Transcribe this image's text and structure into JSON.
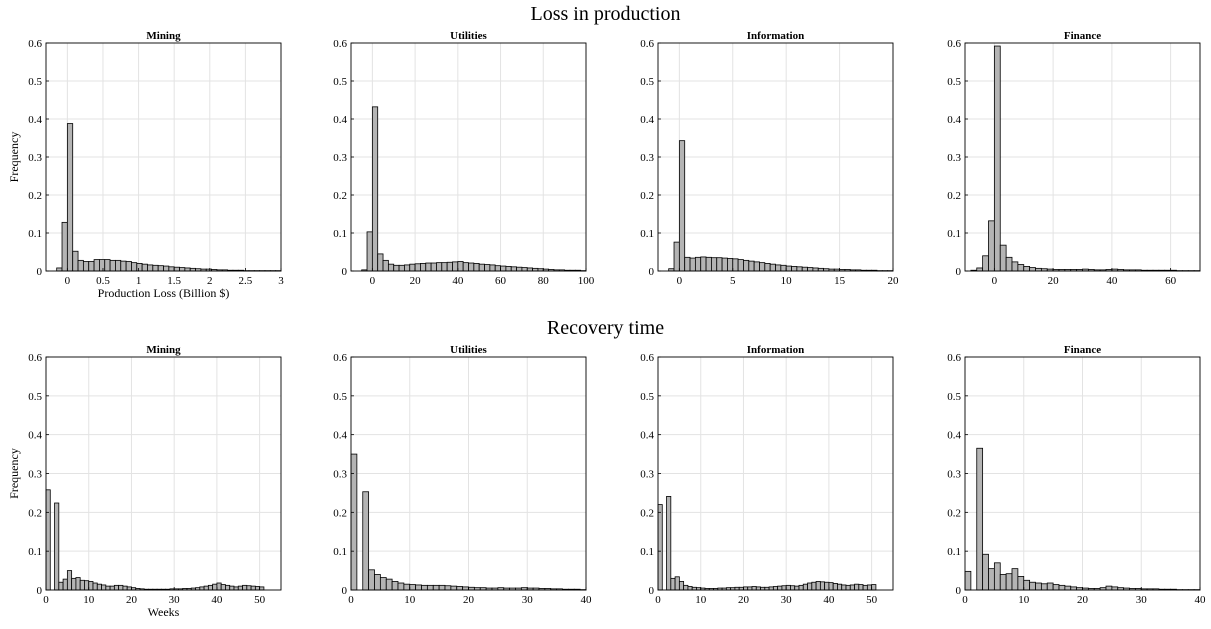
{
  "row_titles": [
    "Loss in production",
    "Recovery time"
  ],
  "colors": {
    "bar_fill": "#b4b4b4",
    "bar_stroke": "#000000",
    "grid": "#e3e3e3"
  },
  "chart_data": [
    {
      "type": "bar",
      "title": "Mining",
      "row": 0,
      "col": 0,
      "xlabel": "Production Loss (Billion $)",
      "ylabel": "Frequency",
      "xlim": [
        -0.3,
        3
      ],
      "ylim": [
        0,
        0.6
      ],
      "xticks": [
        0,
        0.5,
        1,
        1.5,
        2,
        2.5,
        3
      ],
      "xtick_labels": [
        "0",
        "0.5",
        "1",
        "1.5",
        "2",
        "2.5",
        "3"
      ],
      "yticks": [
        0,
        0.1,
        0.2,
        0.3,
        0.4,
        0.5,
        0.6
      ],
      "ytick_labels": [
        "0",
        "0.1",
        "0.2",
        "0.3",
        "0.4",
        "0.5",
        "0.6"
      ],
      "grid": true,
      "bin_width": 0.075,
      "x": [
        -0.1125,
        -0.0375,
        0.0375,
        0.1125,
        0.1875,
        0.2625,
        0.3375,
        0.4125,
        0.4875,
        0.5625,
        0.6375,
        0.7125,
        0.7875,
        0.8625,
        0.9375,
        1.0125,
        1.0875,
        1.1625,
        1.2375,
        1.3125,
        1.3875,
        1.4625,
        1.5375,
        1.6125,
        1.6875,
        1.7625,
        1.8375,
        1.9125,
        1.9875,
        2.0625,
        2.1375,
        2.2125,
        2.2875,
        2.3625,
        2.4375,
        2.5125,
        2.5875,
        2.6625,
        2.7375,
        2.8125,
        2.8875,
        2.9625
      ],
      "values": [
        0.008,
        0.128,
        0.388,
        0.052,
        0.028,
        0.025,
        0.025,
        0.03,
        0.03,
        0.03,
        0.028,
        0.028,
        0.026,
        0.025,
        0.022,
        0.02,
        0.018,
        0.016,
        0.015,
        0.014,
        0.013,
        0.011,
        0.01,
        0.009,
        0.008,
        0.007,
        0.006,
        0.005,
        0.005,
        0.004,
        0.003,
        0.003,
        0.002,
        0.002,
        0.002,
        0.001,
        0.001,
        0.001,
        0.001,
        0.001,
        0.001,
        0.001
      ]
    },
    {
      "type": "bar",
      "title": "Utilities",
      "row": 0,
      "col": 1,
      "xlabel": "",
      "ylabel": "",
      "xlim": [
        -10,
        100
      ],
      "ylim": [
        0,
        0.6
      ],
      "xticks": [
        0,
        20,
        40,
        60,
        80,
        100
      ],
      "xtick_labels": [
        "0",
        "20",
        "40",
        "60",
        "80",
        "100"
      ],
      "yticks": [
        0,
        0.1,
        0.2,
        0.3,
        0.4,
        0.5,
        0.6
      ],
      "ytick_labels": [
        "0",
        "0.1",
        "0.2",
        "0.3",
        "0.4",
        "0.5",
        "0.6"
      ],
      "grid": true,
      "bin_width": 2.5,
      "x": [
        -3.75,
        -1.25,
        1.25,
        3.75,
        6.25,
        8.75,
        11.25,
        13.75,
        16.25,
        18.75,
        21.25,
        23.75,
        26.25,
        28.75,
        31.25,
        33.75,
        36.25,
        38.75,
        41.25,
        43.75,
        46.25,
        48.75,
        51.25,
        53.75,
        56.25,
        58.75,
        61.25,
        63.75,
        66.25,
        68.75,
        71.25,
        73.75,
        76.25,
        78.75,
        81.25,
        83.75,
        86.25,
        88.75,
        91.25,
        93.75,
        96.25,
        98.75
      ],
      "values": [
        0.003,
        0.103,
        0.432,
        0.045,
        0.028,
        0.018,
        0.015,
        0.015,
        0.016,
        0.018,
        0.019,
        0.02,
        0.021,
        0.021,
        0.022,
        0.022,
        0.023,
        0.024,
        0.025,
        0.022,
        0.021,
        0.02,
        0.018,
        0.017,
        0.016,
        0.014,
        0.013,
        0.012,
        0.011,
        0.01,
        0.009,
        0.008,
        0.007,
        0.006,
        0.005,
        0.004,
        0.003,
        0.003,
        0.002,
        0.002,
        0.002,
        0.001
      ]
    },
    {
      "type": "bar",
      "title": "Information",
      "row": 0,
      "col": 2,
      "xlabel": "",
      "ylabel": "",
      "xlim": [
        -2,
        20
      ],
      "ylim": [
        0,
        0.6
      ],
      "xticks": [
        0,
        5,
        10,
        15,
        20
      ],
      "xtick_labels": [
        "0",
        "5",
        "10",
        "15",
        "20"
      ],
      "yticks": [
        0,
        0.1,
        0.2,
        0.3,
        0.4,
        0.5,
        0.6
      ],
      "ytick_labels": [
        "0",
        "0.1",
        "0.2",
        "0.3",
        "0.4",
        "0.5",
        "0.6"
      ],
      "grid": true,
      "bin_width": 0.5,
      "x": [
        -0.75,
        -0.25,
        0.25,
        0.75,
        1.25,
        1.75,
        2.25,
        2.75,
        3.25,
        3.75,
        4.25,
        4.75,
        5.25,
        5.75,
        6.25,
        6.75,
        7.25,
        7.75,
        8.25,
        8.75,
        9.25,
        9.75,
        10.25,
        10.75,
        11.25,
        11.75,
        12.25,
        12.75,
        13.25,
        13.75,
        14.25,
        14.75,
        15.25,
        15.75,
        16.25,
        16.75,
        17.25,
        17.75,
        18.25,
        18.75,
        19.25,
        19.75
      ],
      "values": [
        0.006,
        0.076,
        0.343,
        0.036,
        0.034,
        0.036,
        0.037,
        0.036,
        0.035,
        0.035,
        0.034,
        0.033,
        0.032,
        0.03,
        0.028,
        0.026,
        0.024,
        0.022,
        0.02,
        0.018,
        0.016,
        0.015,
        0.013,
        0.012,
        0.011,
        0.01,
        0.009,
        0.008,
        0.007,
        0.006,
        0.005,
        0.005,
        0.004,
        0.004,
        0.003,
        0.003,
        0.002,
        0.002,
        0.002,
        0.001,
        0.001,
        0.001
      ]
    },
    {
      "type": "bar",
      "title": "Finance",
      "row": 0,
      "col": 3,
      "xlabel": "",
      "ylabel": "",
      "xlim": [
        -10,
        70
      ],
      "ylim": [
        0,
        0.6
      ],
      "xticks": [
        0,
        20,
        40,
        60
      ],
      "xtick_labels": [
        "0",
        "20",
        "40",
        "60"
      ],
      "yticks": [
        0,
        0.1,
        0.2,
        0.3,
        0.4,
        0.5,
        0.6
      ],
      "ytick_labels": [
        "0",
        "0.1",
        "0.2",
        "0.3",
        "0.4",
        "0.5",
        "0.6"
      ],
      "grid": true,
      "bin_width": 2,
      "x": [
        -7,
        -5,
        -3,
        -1,
        1,
        3,
        5,
        7,
        9,
        11,
        13,
        15,
        17,
        19,
        21,
        23,
        25,
        27,
        29,
        31,
        33,
        35,
        37,
        39,
        41,
        43,
        45,
        47,
        49,
        51,
        53,
        55,
        57,
        59,
        61,
        63,
        65,
        67,
        69
      ],
      "values": [
        0.002,
        0.008,
        0.04,
        0.132,
        0.592,
        0.068,
        0.036,
        0.024,
        0.017,
        0.012,
        0.009,
        0.007,
        0.006,
        0.005,
        0.004,
        0.004,
        0.004,
        0.004,
        0.004,
        0.005,
        0.004,
        0.003,
        0.003,
        0.004,
        0.005,
        0.004,
        0.003,
        0.003,
        0.003,
        0.002,
        0.002,
        0.002,
        0.002,
        0.002,
        0.002,
        0.001,
        0.001,
        0.001,
        0.001
      ]
    },
    {
      "type": "bar",
      "title": "Mining",
      "row": 1,
      "col": 0,
      "xlabel": "Weeks",
      "ylabel": "Frequency",
      "xlim": [
        0,
        55
      ],
      "ylim": [
        0,
        0.6
      ],
      "xticks": [
        0,
        10,
        20,
        30,
        40,
        50
      ],
      "xtick_labels": [
        "0",
        "10",
        "20",
        "30",
        "40",
        "50"
      ],
      "yticks": [
        0,
        0.1,
        0.2,
        0.3,
        0.4,
        0.5,
        0.6
      ],
      "ytick_labels": [
        "0",
        "0.1",
        "0.2",
        "0.3",
        "0.4",
        "0.5",
        "0.6"
      ],
      "grid": true,
      "bin_width": 1,
      "x": [
        0.5,
        1.5,
        2.5,
        3.5,
        4.5,
        5.5,
        6.5,
        7.5,
        8.5,
        9.5,
        10.5,
        11.5,
        12.5,
        13.5,
        14.5,
        15.5,
        16.5,
        17.5,
        18.5,
        19.5,
        20.5,
        21.5,
        22.5,
        23.5,
        24.5,
        25.5,
        26.5,
        27.5,
        28.5,
        29.5,
        30.5,
        31.5,
        32.5,
        33.5,
        34.5,
        35.5,
        36.5,
        37.5,
        38.5,
        39.5,
        40.5,
        41.5,
        42.5,
        43.5,
        44.5,
        45.5,
        46.5,
        47.5,
        48.5,
        49.5,
        50.5
      ],
      "values": [
        0.258,
        0.0,
        0.224,
        0.02,
        0.028,
        0.05,
        0.03,
        0.032,
        0.025,
        0.024,
        0.022,
        0.018,
        0.015,
        0.013,
        0.01,
        0.01,
        0.012,
        0.012,
        0.01,
        0.008,
        0.006,
        0.004,
        0.003,
        0.002,
        0.002,
        0.002,
        0.002,
        0.002,
        0.002,
        0.003,
        0.003,
        0.003,
        0.004,
        0.004,
        0.005,
        0.006,
        0.008,
        0.01,
        0.012,
        0.015,
        0.018,
        0.014,
        0.012,
        0.01,
        0.008,
        0.01,
        0.012,
        0.011,
        0.01,
        0.009,
        0.008
      ]
    },
    {
      "type": "bar",
      "title": "Utilities",
      "row": 1,
      "col": 1,
      "xlabel": "",
      "ylabel": "",
      "xlim": [
        0,
        40
      ],
      "ylim": [
        0,
        0.6
      ],
      "xticks": [
        0,
        10,
        20,
        30,
        40
      ],
      "xtick_labels": [
        "0",
        "10",
        "20",
        "30",
        "40"
      ],
      "yticks": [
        0,
        0.1,
        0.2,
        0.3,
        0.4,
        0.5,
        0.6
      ],
      "ytick_labels": [
        "0",
        "0.1",
        "0.2",
        "0.3",
        "0.4",
        "0.5",
        "0.6"
      ],
      "grid": true,
      "bin_width": 1,
      "x": [
        0.5,
        1.5,
        2.5,
        3.5,
        4.5,
        5.5,
        6.5,
        7.5,
        8.5,
        9.5,
        10.5,
        11.5,
        12.5,
        13.5,
        14.5,
        15.5,
        16.5,
        17.5,
        18.5,
        19.5,
        20.5,
        21.5,
        22.5,
        23.5,
        24.5,
        25.5,
        26.5,
        27.5,
        28.5,
        29.5,
        30.5,
        31.5,
        32.5,
        33.5,
        34.5,
        35.5,
        36.5,
        37.5,
        38.5,
        39.5
      ],
      "values": [
        0.35,
        0.0,
        0.253,
        0.052,
        0.04,
        0.032,
        0.028,
        0.022,
        0.018,
        0.015,
        0.014,
        0.013,
        0.012,
        0.012,
        0.012,
        0.012,
        0.011,
        0.01,
        0.009,
        0.008,
        0.007,
        0.006,
        0.006,
        0.005,
        0.005,
        0.006,
        0.005,
        0.005,
        0.005,
        0.006,
        0.005,
        0.005,
        0.004,
        0.004,
        0.003,
        0.003,
        0.002,
        0.002,
        0.002,
        0.001
      ]
    },
    {
      "type": "bar",
      "title": "Information",
      "row": 1,
      "col": 2,
      "xlabel": "",
      "ylabel": "",
      "xlim": [
        0,
        55
      ],
      "ylim": [
        0,
        0.6
      ],
      "xticks": [
        0,
        10,
        20,
        30,
        40,
        50
      ],
      "xtick_labels": [
        "0",
        "10",
        "20",
        "30",
        "40",
        "50"
      ],
      "yticks": [
        0,
        0.1,
        0.2,
        0.3,
        0.4,
        0.5,
        0.6
      ],
      "ytick_labels": [
        "0",
        "0.1",
        "0.2",
        "0.3",
        "0.4",
        "0.5",
        "0.6"
      ],
      "grid": true,
      "bin_width": 1,
      "x": [
        0.5,
        1.5,
        2.5,
        3.5,
        4.5,
        5.5,
        6.5,
        7.5,
        8.5,
        9.5,
        10.5,
        11.5,
        12.5,
        13.5,
        14.5,
        15.5,
        16.5,
        17.5,
        18.5,
        19.5,
        20.5,
        21.5,
        22.5,
        23.5,
        24.5,
        25.5,
        26.5,
        27.5,
        28.5,
        29.5,
        30.5,
        31.5,
        32.5,
        33.5,
        34.5,
        35.5,
        36.5,
        37.5,
        38.5,
        39.5,
        40.5,
        41.5,
        42.5,
        43.5,
        44.5,
        45.5,
        46.5,
        47.5,
        48.5,
        49.5,
        50.5
      ],
      "values": [
        0.22,
        0.0,
        0.241,
        0.03,
        0.034,
        0.022,
        0.012,
        0.009,
        0.007,
        0.006,
        0.005,
        0.004,
        0.004,
        0.004,
        0.005,
        0.005,
        0.006,
        0.006,
        0.007,
        0.007,
        0.008,
        0.008,
        0.009,
        0.008,
        0.007,
        0.007,
        0.008,
        0.009,
        0.01,
        0.011,
        0.012,
        0.011,
        0.01,
        0.012,
        0.015,
        0.018,
        0.02,
        0.022,
        0.021,
        0.02,
        0.019,
        0.017,
        0.015,
        0.013,
        0.012,
        0.013,
        0.015,
        0.014,
        0.012,
        0.013,
        0.014
      ]
    },
    {
      "type": "bar",
      "title": "Finance",
      "row": 1,
      "col": 3,
      "xlabel": "",
      "ylabel": "",
      "xlim": [
        0,
        40
      ],
      "ylim": [
        0,
        0.6
      ],
      "xticks": [
        0,
        10,
        20,
        30,
        40
      ],
      "xtick_labels": [
        "0",
        "10",
        "20",
        "30",
        "40"
      ],
      "yticks": [
        0,
        0.1,
        0.2,
        0.3,
        0.4,
        0.5,
        0.6
      ],
      "ytick_labels": [
        "0",
        "0.1",
        "0.2",
        "0.3",
        "0.4",
        "0.5",
        "0.6"
      ],
      "grid": true,
      "bin_width": 1,
      "x": [
        0.5,
        1.5,
        2.5,
        3.5,
        4.5,
        5.5,
        6.5,
        7.5,
        8.5,
        9.5,
        10.5,
        11.5,
        12.5,
        13.5,
        14.5,
        15.5,
        16.5,
        17.5,
        18.5,
        19.5,
        20.5,
        21.5,
        22.5,
        23.5,
        24.5,
        25.5,
        26.5,
        27.5,
        28.5,
        29.5,
        30.5,
        31.5,
        32.5,
        33.5,
        34.5,
        35.5,
        36.5,
        37.5,
        38.5,
        39.5
      ],
      "values": [
        0.048,
        0.0,
        0.365,
        0.092,
        0.055,
        0.07,
        0.04,
        0.042,
        0.055,
        0.035,
        0.025,
        0.02,
        0.018,
        0.016,
        0.018,
        0.014,
        0.012,
        0.01,
        0.008,
        0.006,
        0.005,
        0.004,
        0.004,
        0.006,
        0.01,
        0.008,
        0.006,
        0.005,
        0.004,
        0.004,
        0.003,
        0.003,
        0.003,
        0.002,
        0.002,
        0.002,
        0.001,
        0.001,
        0.001,
        0.001
      ]
    }
  ]
}
